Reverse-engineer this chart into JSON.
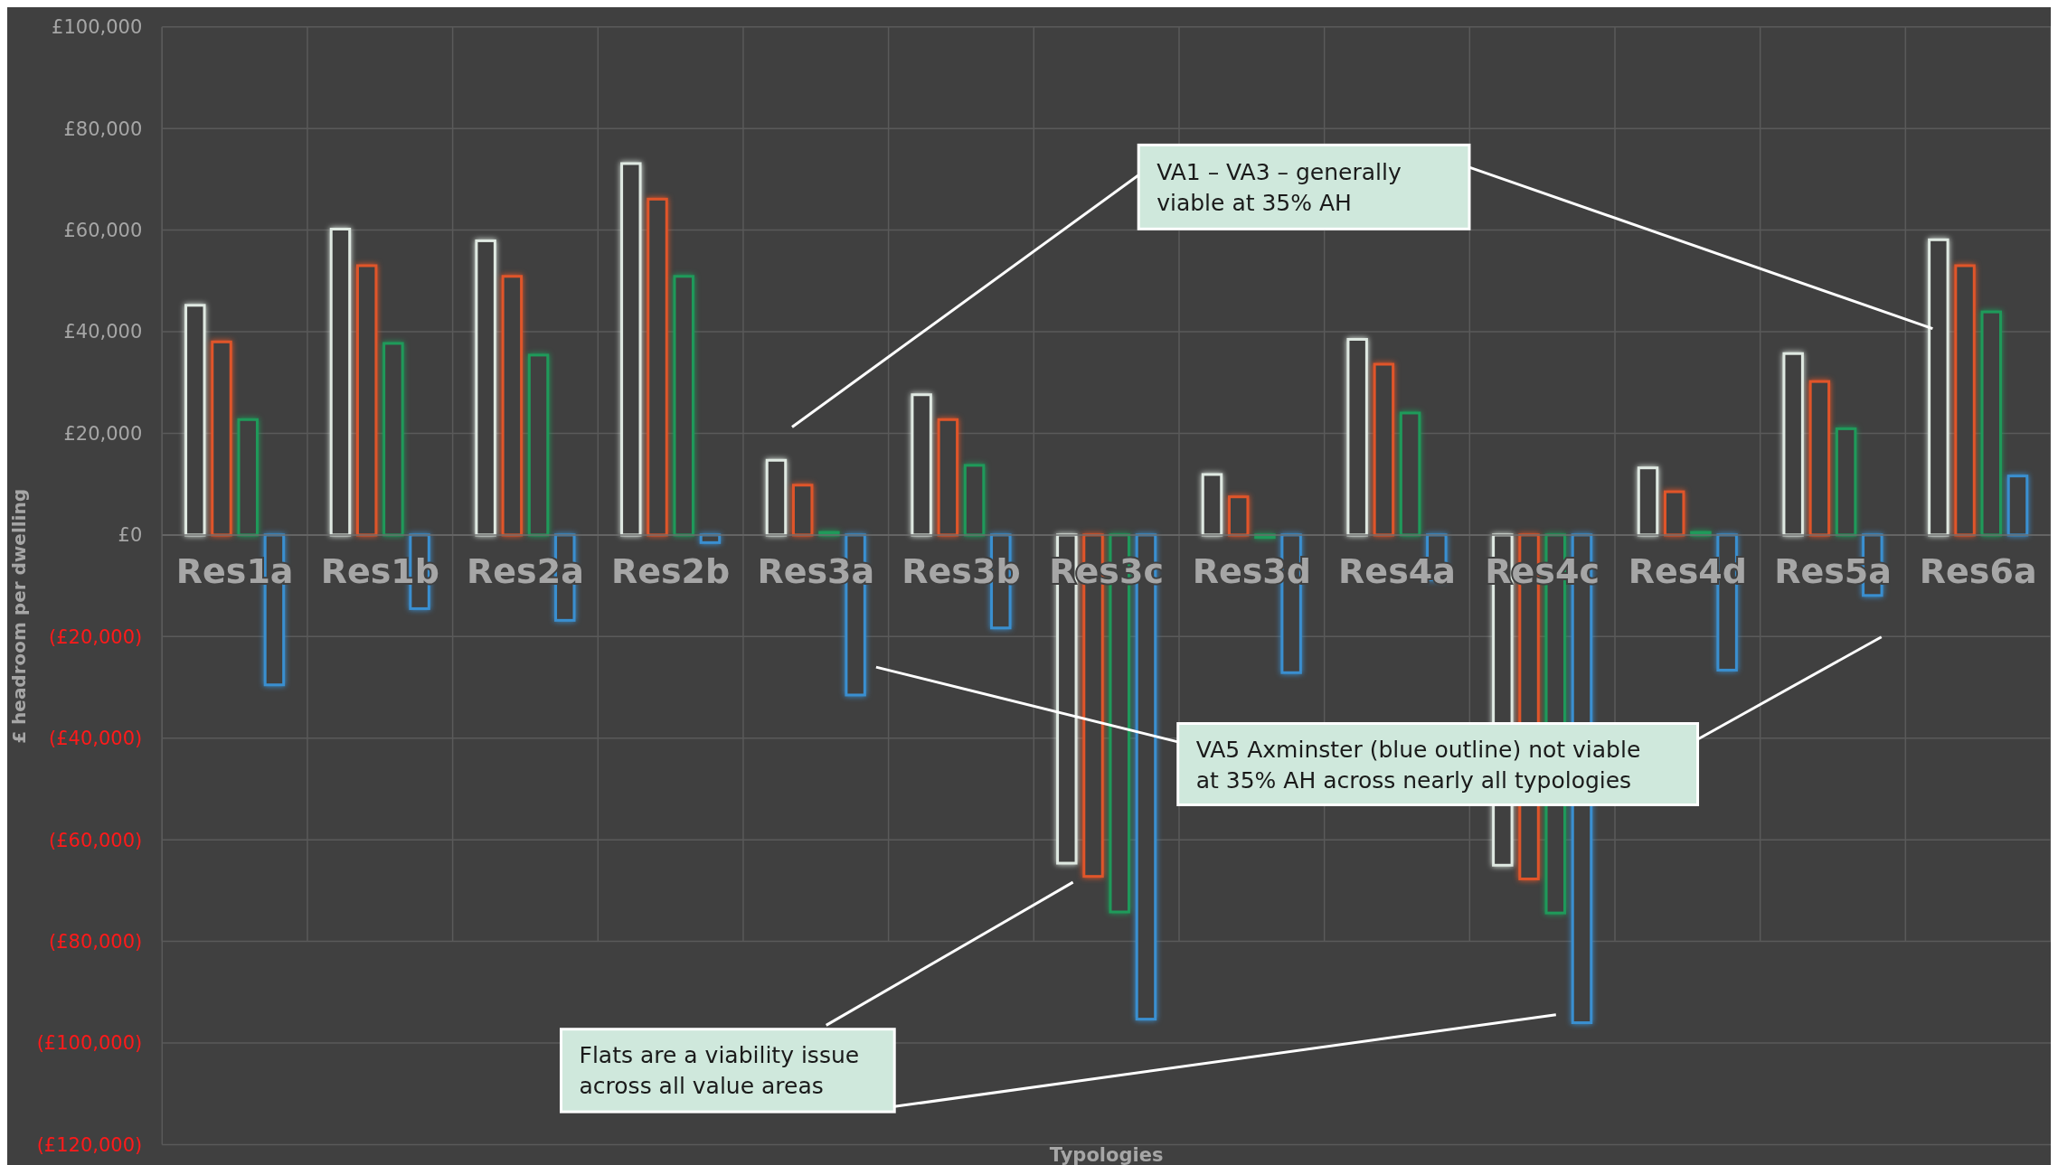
{
  "chart_data": {
    "type": "bar",
    "xlabel": "Typologies",
    "ylabel": "£ headroom per dwelling",
    "categories": [
      "Res1a",
      "Res1b",
      "Res2a",
      "Res2b",
      "Res3a",
      "Res3b",
      "Res3c",
      "Res3d",
      "Res4a",
      "Res4c",
      "Res4d",
      "Res5a",
      "Res6a"
    ],
    "series": [
      {
        "color": "#dfe9e2",
        "values": [
          45200,
          60200,
          57900,
          73100,
          14700,
          27600,
          -64600,
          11900,
          38500,
          -65000,
          13200,
          35700,
          58100
        ]
      },
      {
        "color": "#e0552a",
        "values": [
          38000,
          53000,
          50900,
          66100,
          9800,
          22700,
          -67200,
          7500,
          33600,
          -67700,
          8500,
          30200,
          53000
        ]
      },
      {
        "color": "#1f9a5a",
        "values": [
          22700,
          37700,
          35400,
          50900,
          500,
          13700,
          -74200,
          -500,
          24000,
          -74400,
          500,
          20900,
          43900
        ]
      },
      {
        "color": "#3a8fd0",
        "values": [
          -29500,
          -14500,
          -16800,
          -1500,
          -31500,
          -18300,
          -95300,
          -27100,
          -8800,
          -96000,
          -26600,
          -11900,
          11600
        ]
      }
    ],
    "ylim": [
      -120000,
      100000
    ],
    "yticks": [
      {
        "value": -120000,
        "label": "(£120,000)"
      },
      {
        "value": -100000,
        "label": "(£100,000)"
      },
      {
        "value": -80000,
        "label": "(£80,000)"
      },
      {
        "value": -60000,
        "label": "(£60,000)"
      },
      {
        "value": -40000,
        "label": "(£40,000)"
      },
      {
        "value": -20000,
        "label": "(£20,000)"
      },
      {
        "value": 0,
        "label": "£0"
      },
      {
        "value": 20000,
        "label": "£20,000"
      },
      {
        "value": 40000,
        "label": "£40,000"
      },
      {
        "value": 60000,
        "label": "£60,000"
      },
      {
        "value": 80000,
        "label": "£80,000"
      },
      {
        "value": 100000,
        "label": "£100,000"
      }
    ],
    "grid": true,
    "annotations": [
      "VA1 – VA3 – generally viable at 35% AH",
      "VA5 Axminster (blue outline) not viable at 35% AH across nearly all typologies",
      "Flats are a viability issue across all value areas"
    ]
  }
}
